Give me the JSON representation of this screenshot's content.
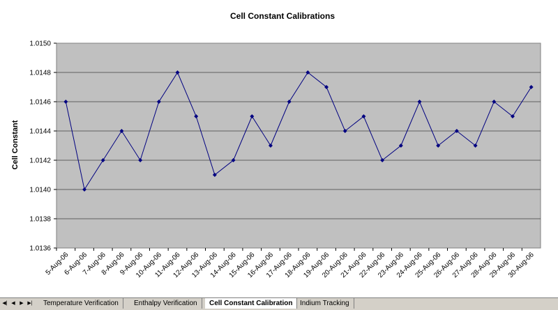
{
  "chart_data": {
    "type": "line",
    "title": "Cell Constant Calibrations",
    "xlabel": "",
    "ylabel": "Cell Constant",
    "ylim": [
      1.0136,
      1.015
    ],
    "ytick_step": 0.0002,
    "grid": true,
    "legend": "none",
    "categories": [
      "5-Aug-06",
      "6-Aug-06",
      "7-Aug-06",
      "8-Aug-06",
      "9-Aug-06",
      "10-Aug-06",
      "11-Aug-06",
      "12-Aug-06",
      "13-Aug-06",
      "14-Aug-06",
      "15-Aug-06",
      "16-Aug-06",
      "17-Aug-06",
      "18-Aug-06",
      "19-Aug-06",
      "20-Aug-06",
      "21-Aug-06",
      "22-Aug-06",
      "23-Aug-06",
      "24-Aug-06",
      "25-Aug-06",
      "26-Aug-06",
      "27-Aug-06",
      "28-Aug-06",
      "29-Aug-06",
      "30-Aug-06"
    ],
    "yticks": [
      "1.0136",
      "1.0138",
      "1.0140",
      "1.0142",
      "1.0144",
      "1.0146",
      "1.0148",
      "1.0150"
    ],
    "series": [
      {
        "values": [
          1.0146,
          1.014,
          1.0142,
          1.0144,
          1.0142,
          1.0146,
          1.0148,
          1.0145,
          1.0141,
          1.0142,
          1.0145,
          1.0143,
          1.0146,
          1.0148,
          1.0147,
          1.0144,
          1.0145,
          1.0142,
          1.0143,
          1.0146,
          1.0143,
          1.0144,
          1.0143,
          1.0146,
          1.0145,
          1.0147
        ]
      }
    ],
    "colors": {
      "line": "#000080",
      "plot_bg": "#c0c0c0",
      "grid": "#000000"
    }
  },
  "sheet_tabs": {
    "nav": [
      "first-sheet",
      "prev-sheet",
      "next-sheet",
      "last-sheet"
    ],
    "tabs": [
      {
        "label": "Temperature Verification",
        "active": false
      },
      {
        "label": "Enthalpy Verification",
        "active": false
      },
      {
        "label": "Cell Constant Calibration",
        "active": true
      },
      {
        "label": "Indium Tracking",
        "active": false
      }
    ]
  }
}
